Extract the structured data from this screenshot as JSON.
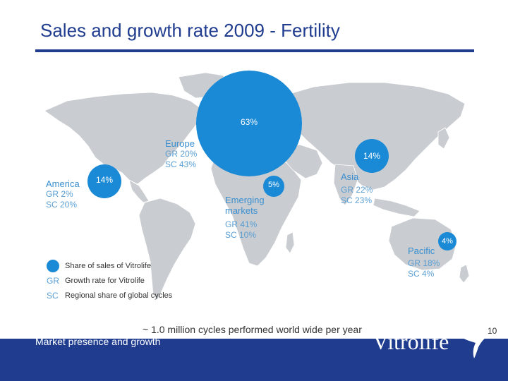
{
  "title": "Sales and growth rate 2009 - Fertility",
  "regions": {
    "america": {
      "name": "America",
      "gr": "GR 2%",
      "sc": "SC 20%",
      "share": "14%"
    },
    "europe": {
      "name": "Europe",
      "gr": "GR 20%",
      "sc": "SC 43%",
      "share": "63%"
    },
    "emerging": {
      "name_line1": "Emerging",
      "name_line2": "markets",
      "gr": "GR 41%",
      "sc": "SC 10%",
      "share": "5%"
    },
    "asia": {
      "name": "Asia",
      "gr": "GR 22%",
      "sc": "SC 23%",
      "share": "14%"
    },
    "pacific": {
      "name": "Pacific",
      "gr": "GR 18%",
      "sc": "SC 4%",
      "share": "4%"
    }
  },
  "legend": {
    "share_label": "Share of sales of Vitrolife",
    "gr_abbr": "GR",
    "gr_label": "Growth rate for Vitrolife",
    "sc_abbr": "SC",
    "sc_label": "Regional share of global cycles"
  },
  "note": "~ 1.0 million cycles performed world wide per year",
  "page_number": "10",
  "footer": {
    "text": "Market presence and growth",
    "logo": "Vitrolife"
  },
  "colors": {
    "brand_blue": "#1f3c8f",
    "bubble_blue": "#1b8ad6",
    "land_gray": "#c9ccd0"
  }
}
